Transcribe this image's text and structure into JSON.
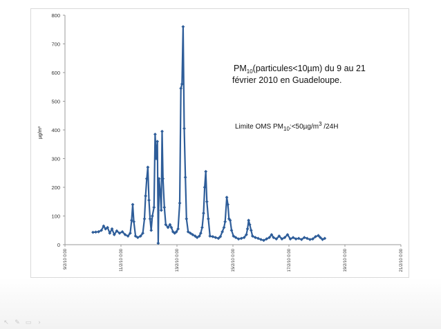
{
  "chart_data": {
    "type": "line",
    "title_parts": [
      "PM",
      "10",
      "(particules<10µm)  du 9 au 21",
      "février 2010 en Guadeloupe."
    ],
    "annotation_parts": [
      "Limite OMS PM",
      "10",
      ":<50µg/m",
      "3",
      "  /24H"
    ],
    "ylabel": "µg/m³",
    "ylim": [
      0,
      800
    ],
    "yticks": [
      0,
      100,
      200,
      300,
      400,
      500,
      600,
      700,
      800
    ],
    "xticks": [
      "9/2/10 0:00",
      "11/2/10 0:00",
      "13/2/10 0:00",
      "15/2/10 0:00",
      "17/2/10 0:00",
      "19/2/10 0:00",
      "21/2/10 0:00"
    ],
    "x_range_days": [
      9,
      21
    ],
    "series": [
      {
        "color": "#2e5d99",
        "values": [
          [
            10.0,
            43
          ],
          [
            10.1,
            44
          ],
          [
            10.2,
            45
          ],
          [
            10.3,
            50
          ],
          [
            10.38,
            65
          ],
          [
            10.45,
            55
          ],
          [
            10.52,
            60
          ],
          [
            10.6,
            40
          ],
          [
            10.68,
            55
          ],
          [
            10.76,
            35
          ],
          [
            10.85,
            48
          ],
          [
            10.95,
            40
          ],
          [
            11.05,
            45
          ],
          [
            11.15,
            35
          ],
          [
            11.25,
            30
          ],
          [
            11.33,
            40
          ],
          [
            11.38,
            85
          ],
          [
            11.42,
            140
          ],
          [
            11.46,
            80
          ],
          [
            11.52,
            30
          ],
          [
            11.6,
            25
          ],
          [
            11.7,
            30
          ],
          [
            11.78,
            40
          ],
          [
            11.84,
            90
          ],
          [
            11.88,
            170
          ],
          [
            11.92,
            230
          ],
          [
            11.96,
            270
          ],
          [
            12.0,
            155
          ],
          [
            12.04,
            90
          ],
          [
            12.08,
            50
          ],
          [
            12.12,
            100
          ],
          [
            12.18,
            130
          ],
          [
            12.22,
            385
          ],
          [
            12.26,
            300
          ],
          [
            12.3,
            360
          ],
          [
            12.33,
            5
          ],
          [
            12.36,
            230
          ],
          [
            12.4,
            185
          ],
          [
            12.44,
            120
          ],
          [
            12.47,
            395
          ],
          [
            12.5,
            230
          ],
          [
            12.55,
            130
          ],
          [
            12.6,
            70
          ],
          [
            12.68,
            60
          ],
          [
            12.75,
            70
          ],
          [
            12.8,
            60
          ],
          [
            12.86,
            45
          ],
          [
            12.92,
            40
          ],
          [
            12.98,
            45
          ],
          [
            13.04,
            55
          ],
          [
            13.1,
            145
          ],
          [
            13.14,
            545
          ],
          [
            13.18,
            560
          ],
          [
            13.22,
            760
          ],
          [
            13.26,
            405
          ],
          [
            13.3,
            235
          ],
          [
            13.34,
            90
          ],
          [
            13.4,
            45
          ],
          [
            13.48,
            40
          ],
          [
            13.56,
            35
          ],
          [
            13.65,
            30
          ],
          [
            13.72,
            25
          ],
          [
            13.8,
            30
          ],
          [
            13.85,
            40
          ],
          [
            13.9,
            60
          ],
          [
            13.95,
            110
          ],
          [
            13.99,
            200
          ],
          [
            14.03,
            255
          ],
          [
            14.07,
            150
          ],
          [
            14.12,
            90
          ],
          [
            14.18,
            30
          ],
          [
            14.28,
            28
          ],
          [
            14.38,
            25
          ],
          [
            14.48,
            22
          ],
          [
            14.55,
            28
          ],
          [
            14.62,
            45
          ],
          [
            14.68,
            60
          ],
          [
            14.72,
            80
          ],
          [
            14.78,
            165
          ],
          [
            14.82,
            140
          ],
          [
            14.86,
            90
          ],
          [
            14.9,
            85
          ],
          [
            14.95,
            50
          ],
          [
            15.02,
            30
          ],
          [
            15.1,
            25
          ],
          [
            15.2,
            20
          ],
          [
            15.3,
            22
          ],
          [
            15.4,
            25
          ],
          [
            15.48,
            35
          ],
          [
            15.52,
            55
          ],
          [
            15.56,
            85
          ],
          [
            15.6,
            70
          ],
          [
            15.65,
            50
          ],
          [
            15.7,
            30
          ],
          [
            15.8,
            25
          ],
          [
            15.9,
            22
          ],
          [
            16.0,
            18
          ],
          [
            16.1,
            15
          ],
          [
            16.2,
            20
          ],
          [
            16.3,
            25
          ],
          [
            16.38,
            35
          ],
          [
            16.45,
            25
          ],
          [
            16.55,
            20
          ],
          [
            16.65,
            30
          ],
          [
            16.75,
            20
          ],
          [
            16.85,
            25
          ],
          [
            16.95,
            35
          ],
          [
            17.05,
            20
          ],
          [
            17.15,
            25
          ],
          [
            17.25,
            20
          ],
          [
            17.35,
            22
          ],
          [
            17.45,
            18
          ],
          [
            17.55,
            25
          ],
          [
            17.65,
            22
          ],
          [
            17.75,
            18
          ],
          [
            17.85,
            20
          ],
          [
            17.95,
            28
          ],
          [
            18.05,
            32
          ],
          [
            18.12,
            25
          ],
          [
            18.2,
            18
          ],
          [
            18.28,
            22
          ]
        ]
      }
    ]
  }
}
